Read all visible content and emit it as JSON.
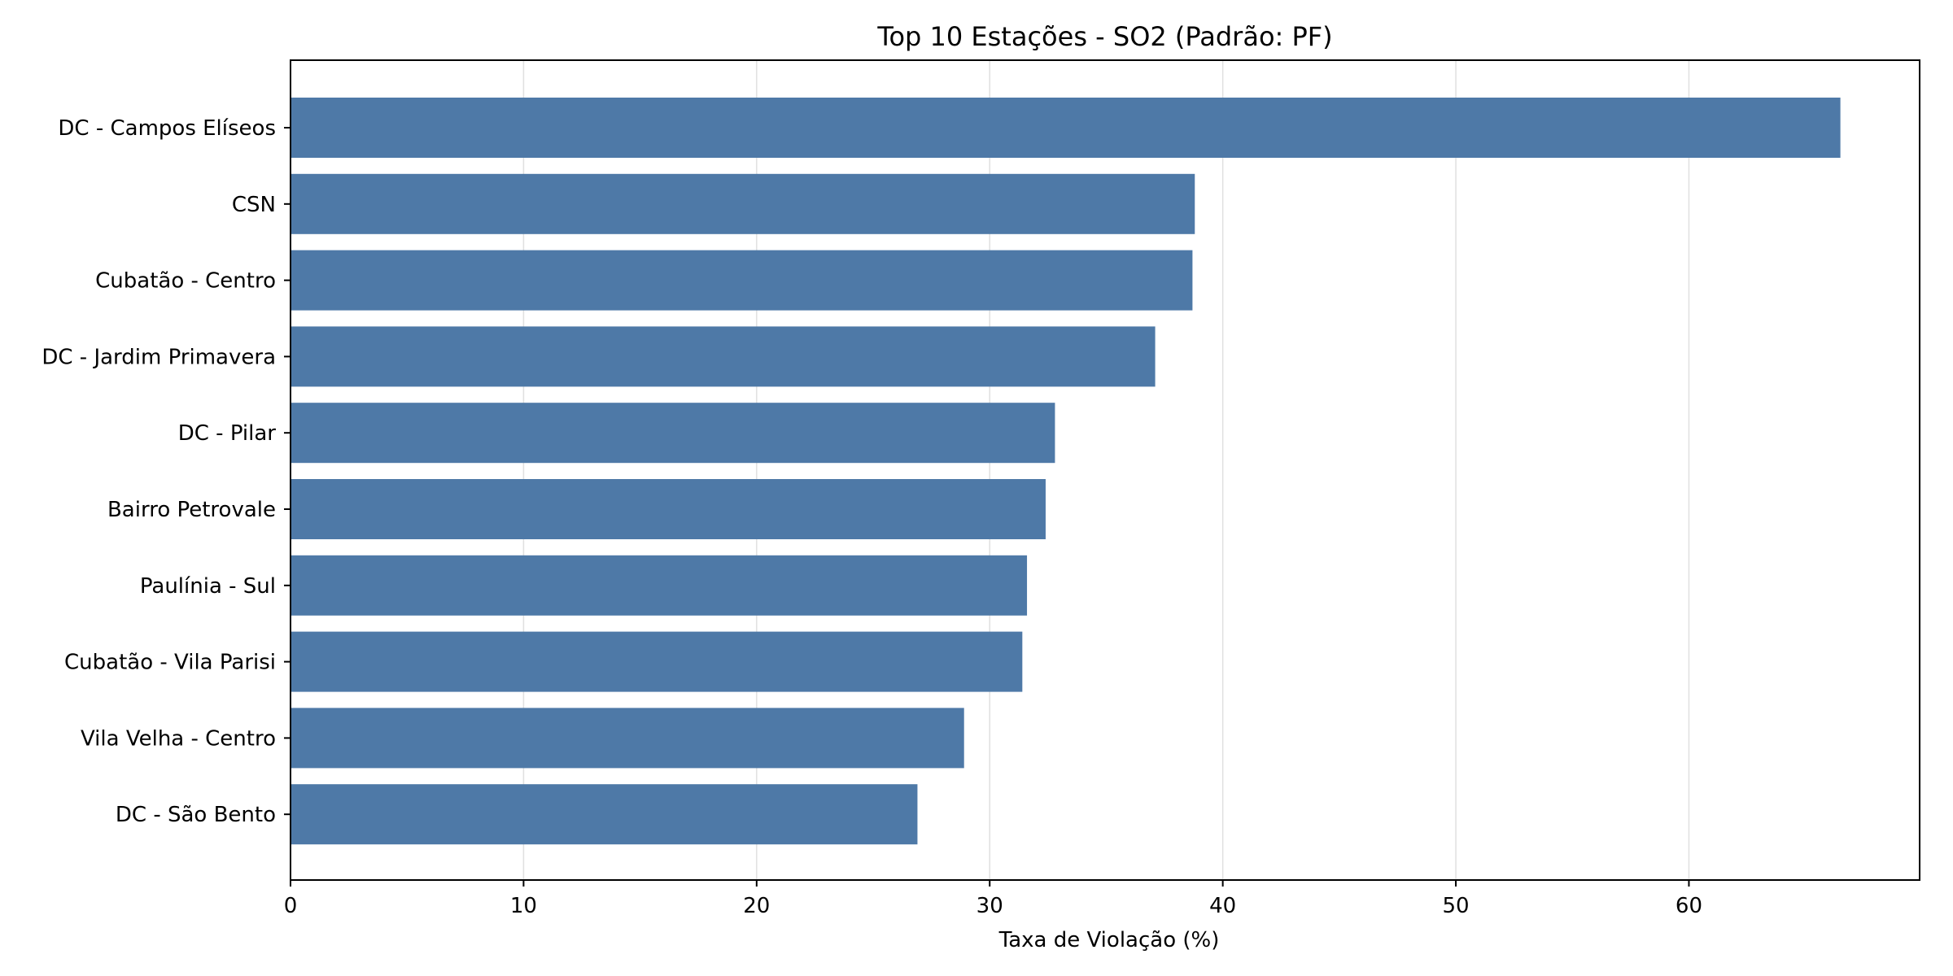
{
  "chart_data": {
    "type": "bar",
    "orientation": "horizontal",
    "title": "Top 10 Estações - SO2 (Padrão: PF)",
    "xlabel": "Taxa de Violação (%)",
    "ylabel": "",
    "categories": [
      "DC - Campos Elíseos",
      "CSN",
      "Cubatão - Centro",
      "DC - Jardim Primavera",
      "DC - Pilar",
      "Bairro Petrovale",
      "Paulínia - Sul",
      "Cubatão - Vila Parisi",
      "Vila Velha - Centro",
      "DC - São Bento"
    ],
    "values": [
      66.5,
      38.8,
      38.7,
      37.1,
      32.8,
      32.4,
      31.6,
      31.4,
      28.9,
      26.9
    ],
    "xlim": [
      0,
      69.9
    ],
    "xticks": [
      0,
      10,
      20,
      30,
      40,
      50,
      60
    ],
    "grid": "x",
    "legend": "none",
    "colors": {
      "bar": "#4e79a7",
      "grid": "#e0e0e0",
      "axis": "#000000"
    }
  }
}
